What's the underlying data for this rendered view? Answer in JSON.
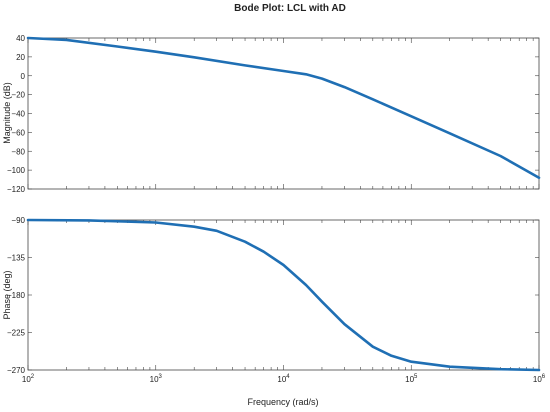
{
  "chart_data": [
    {
      "type": "line",
      "panel": "magnitude",
      "title": "Bode Plot: LCL with AD",
      "xlabel": "",
      "ylabel": "Magnitude (dB)",
      "x_scale": "log",
      "xlim": [
        100,
        1000000
      ],
      "ylim": [
        -120,
        40
      ],
      "y_ticks": [
        40,
        20,
        0,
        -20,
        -40,
        -60,
        -80,
        -100,
        -120
      ],
      "y_tick_labels": [
        "40",
        "20",
        "0",
        "−20",
        "−40",
        "−60",
        "−80",
        "−100",
        "−120"
      ],
      "grid": false,
      "series": [
        {
          "color": "#1f6fb4",
          "x": [
            100,
            200,
            500,
            1000,
            2000,
            5000,
            10000,
            15000,
            20000,
            30000,
            50000,
            100000,
            200000,
            500000,
            1000000
          ],
          "y": [
            40,
            38,
            31,
            25.5,
            19.5,
            11,
            5,
            1.5,
            -3,
            -12,
            -25,
            -43,
            -61,
            -85,
            -108
          ]
        }
      ]
    },
    {
      "type": "line",
      "panel": "phase",
      "xlabel": "Frequency (rad/s)",
      "ylabel": "Phase (deg)",
      "x_scale": "log",
      "xlim": [
        100,
        1000000
      ],
      "x_ticks": [
        100,
        1000,
        10000,
        100000,
        1000000
      ],
      "x_tick_bases": [
        "10",
        "10",
        "10",
        "10",
        "10"
      ],
      "x_tick_exponents": [
        "2",
        "3",
        "4",
        "5",
        "6"
      ],
      "ylim": [
        -270,
        -90
      ],
      "y_ticks": [
        -90,
        -135,
        -180,
        -225,
        -270
      ],
      "y_tick_labels": [
        "−90",
        "−135",
        "−180",
        "−225",
        "−270"
      ],
      "grid": false,
      "series": [
        {
          "color": "#1f6fb4",
          "x": [
            100,
            300,
            1000,
            2000,
            3000,
            5000,
            7000,
            10000,
            15000,
            20000,
            30000,
            50000,
            70000,
            100000,
            200000,
            500000,
            1000000
          ],
          "y": [
            -90,
            -90.5,
            -93,
            -98,
            -103,
            -116,
            -128,
            -144,
            -168,
            -188,
            -215,
            -242,
            -253,
            -260,
            -266,
            -269,
            -270
          ]
        }
      ]
    }
  ]
}
